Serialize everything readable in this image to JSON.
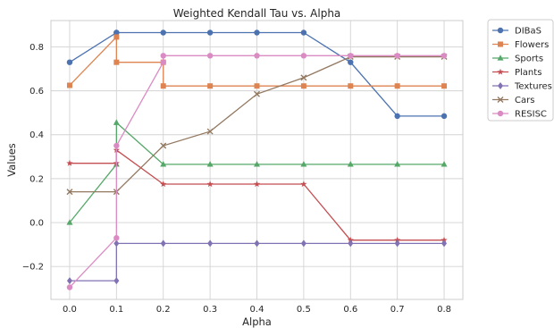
{
  "chart_data": {
    "type": "line",
    "title": "Weighted Kendall Tau vs. Alpha",
    "xlabel": "Alpha",
    "ylabel": "Values",
    "xlim": [
      -0.04,
      0.84
    ],
    "ylim": [
      -0.35,
      0.92
    ],
    "xticks": [
      0.0,
      0.1,
      0.2,
      0.3,
      0.4,
      0.5,
      0.6,
      0.7,
      0.8
    ],
    "xtick_labels": [
      "0.0",
      "0.1",
      "0.2",
      "0.3",
      "0.4",
      "0.5",
      "0.6",
      "0.7",
      "0.8"
    ],
    "yticks": [
      -0.2,
      0.0,
      0.2,
      0.4,
      0.6,
      0.8
    ],
    "ytick_labels": [
      "−0.2",
      "0.0",
      "0.2",
      "0.4",
      "0.6",
      "0.8"
    ],
    "grid": true,
    "legend_position": "outside-top-right",
    "series": [
      {
        "name": "DIBaS",
        "color": "#4c72b0",
        "marker": "circle",
        "x": [
          0.0,
          0.1,
          0.1,
          0.2,
          0.3,
          0.4,
          0.5,
          0.6,
          0.7,
          0.8
        ],
        "y": [
          0.73,
          0.865,
          0.865,
          0.865,
          0.865,
          0.865,
          0.865,
          0.73,
          0.485,
          0.485
        ]
      },
      {
        "name": "Flowers",
        "color": "#dd8452",
        "marker": "square",
        "x": [
          0.0,
          0.1,
          0.1,
          0.2,
          0.2,
          0.3,
          0.4,
          0.5,
          0.6,
          0.7,
          0.8
        ],
        "y": [
          0.625,
          0.845,
          0.73,
          0.73,
          0.622,
          0.622,
          0.622,
          0.622,
          0.622,
          0.622,
          0.622
        ]
      },
      {
        "name": "Sports",
        "color": "#55a868",
        "marker": "triangle",
        "x": [
          0.0,
          0.1,
          0.1,
          0.2,
          0.3,
          0.4,
          0.5,
          0.6,
          0.7,
          0.8
        ],
        "y": [
          0.0,
          0.265,
          0.455,
          0.265,
          0.265,
          0.265,
          0.265,
          0.265,
          0.265,
          0.265
        ]
      },
      {
        "name": "Plants",
        "color": "#c44e52",
        "marker": "star",
        "x": [
          0.0,
          0.1,
          0.1,
          0.2,
          0.3,
          0.4,
          0.5,
          0.6,
          0.7,
          0.8
        ],
        "y": [
          0.27,
          0.27,
          0.33,
          0.175,
          0.175,
          0.175,
          0.175,
          -0.08,
          -0.08,
          -0.08
        ]
      },
      {
        "name": "Textures",
        "color": "#8172b3",
        "marker": "diamond",
        "x": [
          0.0,
          0.1,
          0.1,
          0.2,
          0.3,
          0.4,
          0.5,
          0.6,
          0.7,
          0.8
        ],
        "y": [
          -0.265,
          -0.265,
          -0.095,
          -0.095,
          -0.095,
          -0.095,
          -0.095,
          -0.095,
          -0.095,
          -0.095
        ]
      },
      {
        "name": "Cars",
        "color": "#937860",
        "marker": "x",
        "x": [
          0.0,
          0.1,
          0.2,
          0.3,
          0.4,
          0.5,
          0.6,
          0.7,
          0.8
        ],
        "y": [
          0.14,
          0.14,
          0.35,
          0.415,
          0.585,
          0.66,
          0.755,
          0.755,
          0.755
        ]
      },
      {
        "name": "RESISC",
        "color": "#da8bc3",
        "marker": "circle",
        "x": [
          0.0,
          0.1,
          0.1,
          0.2,
          0.2,
          0.3,
          0.4,
          0.5,
          0.6,
          0.7,
          0.8
        ],
        "y": [
          -0.295,
          -0.07,
          0.35,
          0.73,
          0.76,
          0.76,
          0.76,
          0.76,
          0.76,
          0.76,
          0.76
        ]
      }
    ]
  }
}
